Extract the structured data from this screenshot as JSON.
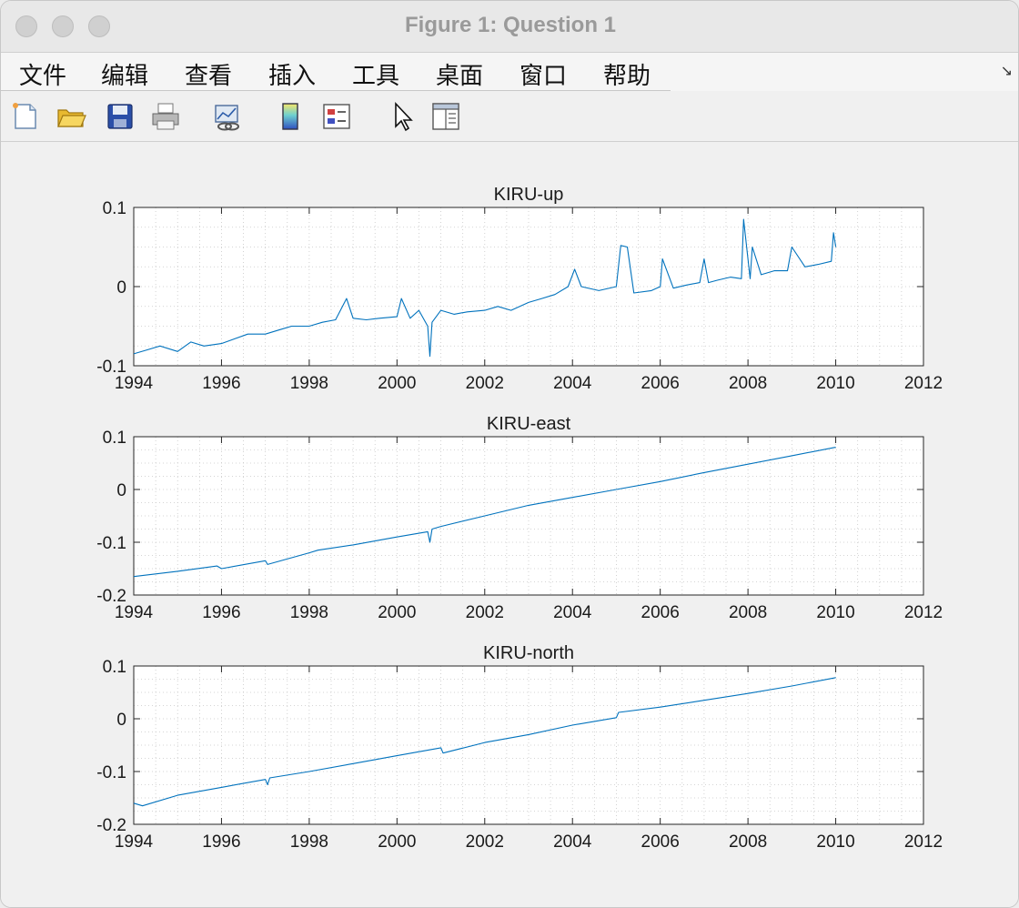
{
  "window": {
    "title": "Figure 1: Question 1"
  },
  "menu": [
    "文件",
    "编辑",
    "查看",
    "插入",
    "工具",
    "桌面",
    "窗口",
    "帮助"
  ],
  "toolbar_icons": [
    "new-figure-icon",
    "open-file-icon",
    "save-icon",
    "print-icon",
    "link-plot-icon",
    "colorbar-icon",
    "legend-icon",
    "pointer-icon",
    "property-inspector-icon"
  ],
  "chart_data": [
    {
      "type": "line",
      "title": "KIRU-up",
      "xlim": [
        1994,
        2012
      ],
      "ylim": [
        -0.1,
        0.1
      ],
      "xticks": [
        "1994",
        "1996",
        "1998",
        "2000",
        "2002",
        "2004",
        "2006",
        "2008",
        "2010",
        "2012"
      ],
      "yticks": [
        "0.1",
        "0",
        "-0.1"
      ],
      "grid": "minor",
      "color": "#0072bd",
      "series": [
        {
          "x": [
            1994.0,
            1994.3,
            1994.6,
            1995.0,
            1995.3,
            1995.6,
            1996.0,
            1996.3,
            1996.6,
            1997.0,
            1997.3,
            1997.6,
            1998.0,
            1998.3,
            1998.6,
            1998.85,
            1999.0,
            1999.3,
            1999.6,
            2000.0,
            2000.1,
            2000.3,
            2000.5,
            2000.7,
            2000.75,
            2000.8,
            2001.0,
            2001.3,
            2001.6,
            2002.0,
            2002.3,
            2002.6,
            2003.0,
            2003.3,
            2003.6,
            2003.9,
            2004.05,
            2004.2,
            2004.6,
            2005.0,
            2005.1,
            2005.25,
            2005.4,
            2005.8,
            2006.0,
            2006.05,
            2006.3,
            2006.6,
            2006.9,
            2007.0,
            2007.1,
            2007.3,
            2007.6,
            2007.85,
            2007.9,
            2008.05,
            2008.1,
            2008.3,
            2008.6,
            2008.9,
            2009.0,
            2009.3,
            2009.6,
            2009.9,
            2009.95,
            2010.0
          ],
          "y": [
            -0.085,
            -0.08,
            -0.075,
            -0.082,
            -0.07,
            -0.075,
            -0.072,
            -0.066,
            -0.06,
            -0.06,
            -0.055,
            -0.05,
            -0.05,
            -0.045,
            -0.042,
            -0.015,
            -0.04,
            -0.042,
            -0.04,
            -0.038,
            -0.015,
            -0.04,
            -0.03,
            -0.05,
            -0.088,
            -0.045,
            -0.03,
            -0.035,
            -0.032,
            -0.03,
            -0.025,
            -0.03,
            -0.02,
            -0.015,
            -0.01,
            0.0,
            0.022,
            0.0,
            -0.005,
            0.0,
            0.052,
            0.05,
            -0.008,
            -0.005,
            0.0,
            0.035,
            -0.002,
            0.002,
            0.005,
            0.035,
            0.005,
            0.008,
            0.012,
            0.01,
            0.085,
            0.01,
            0.05,
            0.015,
            0.02,
            0.02,
            0.05,
            0.025,
            0.028,
            0.032,
            0.068,
            0.05
          ]
        }
      ]
    },
    {
      "type": "line",
      "title": "KIRU-east",
      "xlim": [
        1994,
        2012
      ],
      "ylim": [
        -0.2,
        0.1
      ],
      "xticks": [
        "1994",
        "1996",
        "1998",
        "2000",
        "2002",
        "2004",
        "2006",
        "2008",
        "2010",
        "2012"
      ],
      "yticks": [
        "0.1",
        "0",
        "-0.1",
        "-0.2"
      ],
      "grid": "minor",
      "color": "#0072bd",
      "series": [
        {
          "x": [
            1994.0,
            1995.0,
            1995.9,
            1996.0,
            1997.0,
            1997.05,
            1998.0,
            1998.2,
            1999.0,
            2000.0,
            2000.7,
            2000.75,
            2000.8,
            2001.0,
            2002.0,
            2003.0,
            2004.0,
            2005.0,
            2006.0,
            2007.0,
            2008.0,
            2009.0,
            2010.0
          ],
          "y": [
            -0.165,
            -0.155,
            -0.145,
            -0.15,
            -0.135,
            -0.142,
            -0.12,
            -0.115,
            -0.105,
            -0.09,
            -0.08,
            -0.1,
            -0.075,
            -0.07,
            -0.05,
            -0.03,
            -0.015,
            0.0,
            0.015,
            0.032,
            0.048,
            0.064,
            0.08
          ]
        }
      ]
    },
    {
      "type": "line",
      "title": "KIRU-north",
      "xlim": [
        1994,
        2012
      ],
      "ylim": [
        -0.2,
        0.1
      ],
      "xticks": [
        "1994",
        "1996",
        "1998",
        "2000",
        "2002",
        "2004",
        "2006",
        "2008",
        "2010",
        "2012"
      ],
      "yticks": [
        "0.1",
        "0",
        "-0.1",
        "-0.2"
      ],
      "grid": "minor",
      "color": "#0072bd",
      "series": [
        {
          "x": [
            1994.0,
            1994.2,
            1995.0,
            1996.0,
            1997.0,
            1997.05,
            1997.1,
            1998.0,
            1999.0,
            2000.0,
            2001.0,
            2001.05,
            2002.0,
            2003.0,
            2004.0,
            2005.0,
            2005.05,
            2006.0,
            2007.0,
            2008.0,
            2009.0,
            2010.0
          ],
          "y": [
            -0.16,
            -0.165,
            -0.145,
            -0.13,
            -0.115,
            -0.125,
            -0.112,
            -0.1,
            -0.085,
            -0.07,
            -0.055,
            -0.065,
            -0.045,
            -0.03,
            -0.012,
            0.002,
            0.012,
            0.022,
            0.035,
            0.048,
            0.062,
            0.078
          ]
        }
      ]
    }
  ]
}
